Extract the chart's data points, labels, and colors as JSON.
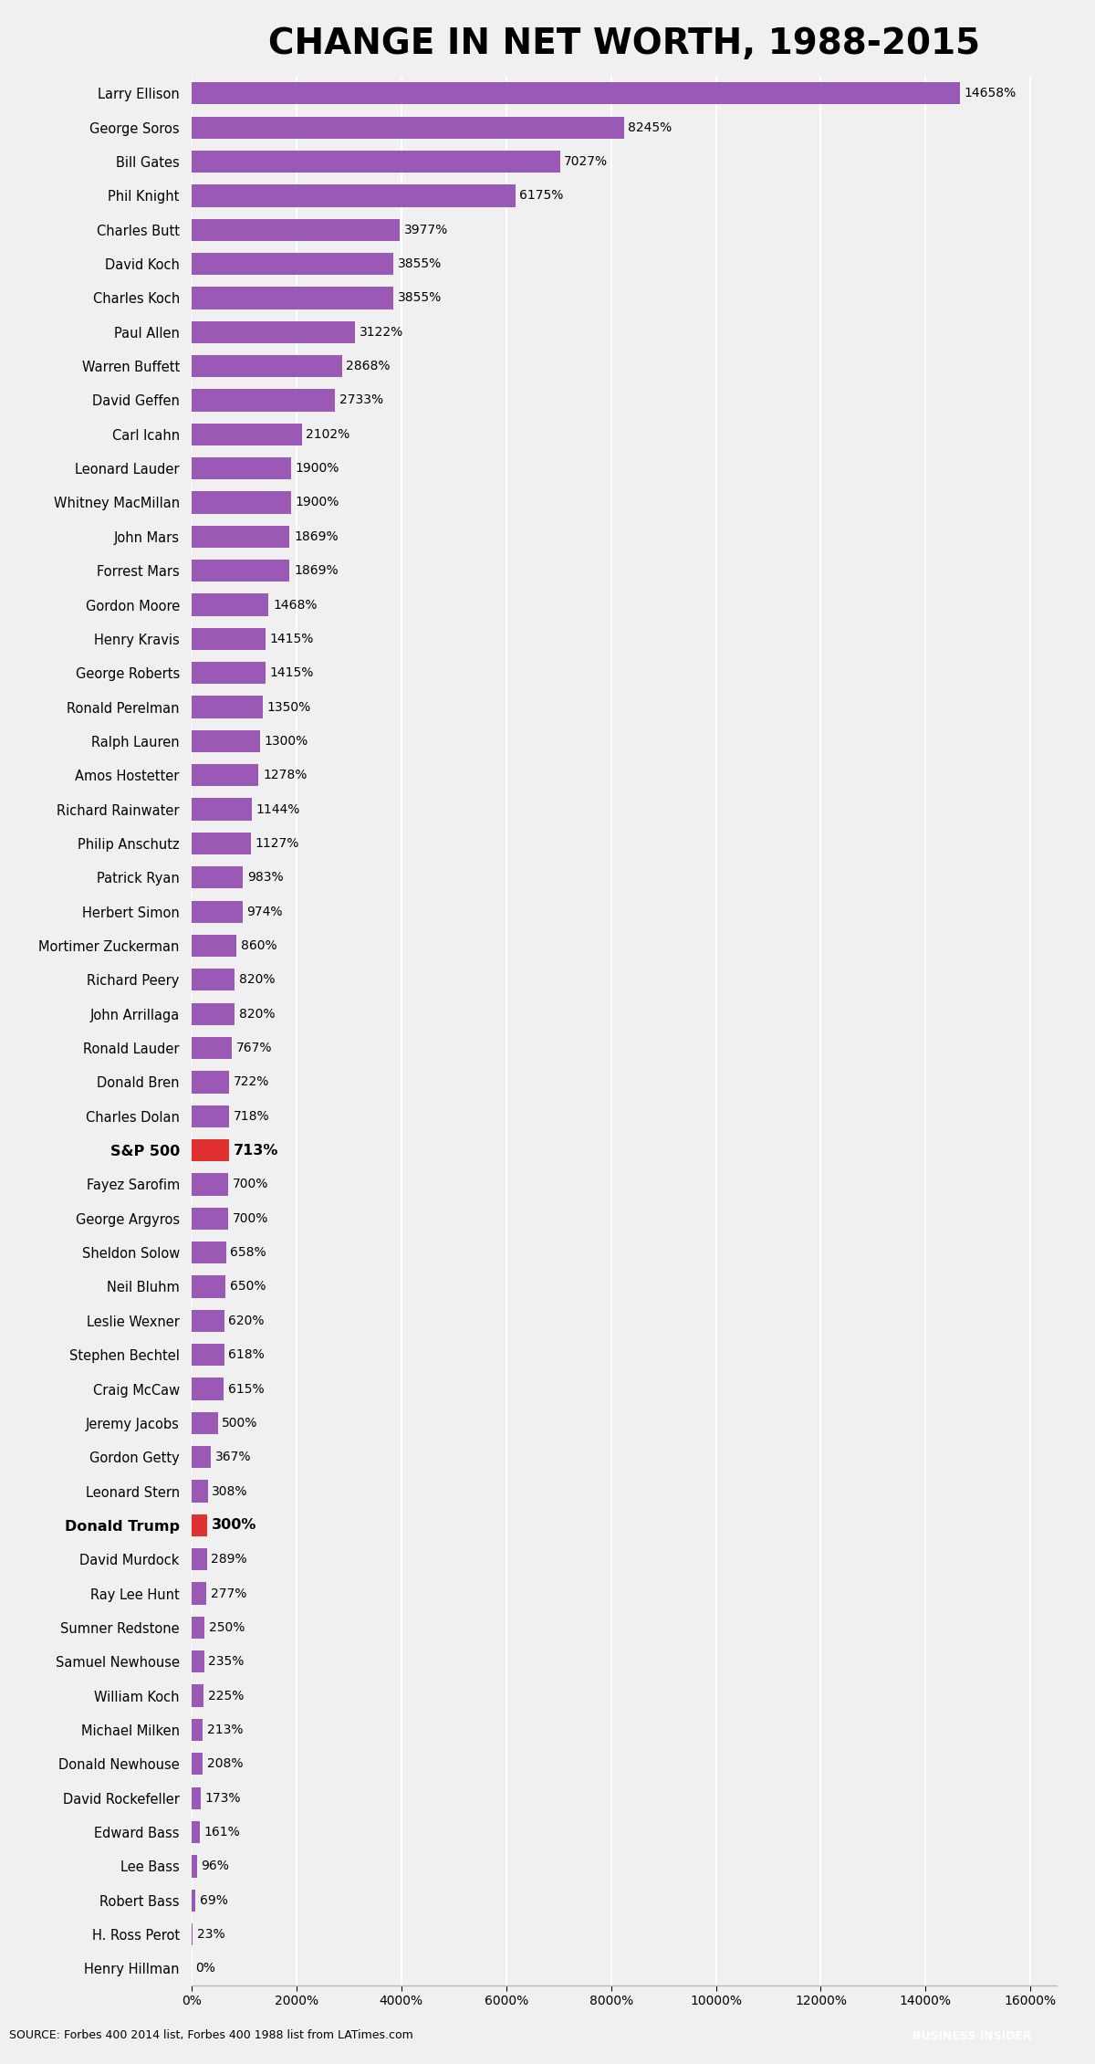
{
  "title": "CHANGE IN NET WORTH, 1988-2015",
  "categories": [
    "Larry Ellison",
    "George Soros",
    "Bill Gates",
    "Phil Knight",
    "Charles Butt",
    "David Koch",
    "Charles Koch",
    "Paul Allen",
    "Warren Buffett",
    "David Geffen",
    "Carl Icahn",
    "Leonard Lauder",
    "Whitney MacMillan",
    "John Mars",
    "Forrest Mars",
    "Gordon Moore",
    "Henry Kravis",
    "George Roberts",
    "Ronald Perelman",
    "Ralph Lauren",
    "Amos Hostetter",
    "Richard Rainwater",
    "Philip Anschutz",
    "Patrick Ryan",
    "Herbert Simon",
    "Mortimer Zuckerman",
    "Richard Peery",
    "John Arrillaga",
    "Ronald Lauder",
    "Donald Bren",
    "Charles Dolan",
    "S&P 500",
    "Fayez Sarofim",
    "George Argyros",
    "Sheldon Solow",
    "Neil Bluhm",
    "Leslie Wexner",
    "Stephen Bechtel",
    "Craig McCaw",
    "Jeremy Jacobs",
    "Gordon Getty",
    "Leonard Stern",
    "Donald Trump",
    "David Murdock",
    "Ray Lee Hunt",
    "Sumner Redstone",
    "Samuel Newhouse",
    "William Koch",
    "Michael Milken",
    "Donald Newhouse",
    "David Rockefeller",
    "Edward Bass",
    "Lee Bass",
    "Robert Bass",
    "H. Ross Perot",
    "Henry Hillman"
  ],
  "values": [
    14658,
    8245,
    7027,
    6175,
    3977,
    3855,
    3855,
    3122,
    2868,
    2733,
    2102,
    1900,
    1900,
    1869,
    1869,
    1468,
    1415,
    1415,
    1350,
    1300,
    1278,
    1144,
    1127,
    983,
    974,
    860,
    820,
    820,
    767,
    722,
    718,
    713,
    700,
    700,
    658,
    650,
    620,
    618,
    615,
    500,
    367,
    308,
    300,
    289,
    277,
    250,
    235,
    225,
    213,
    208,
    173,
    161,
    96,
    69,
    23,
    0
  ],
  "bar_color": "#9b59b6",
  "highlight_color": "#e03030",
  "highlight_names": [
    "S&P 500",
    "Donald Trump"
  ],
  "bg_color": "#f0f0f0",
  "footer_bg": "#c8c8c8",
  "source_text": "SOURCE: Forbes 400 2014 list, Forbes 400 1988 list from LATimes.com",
  "bi_text": "BUSINESS INSIDER",
  "bi_bg": "#2e6e7e",
  "xlim_max": 16500
}
